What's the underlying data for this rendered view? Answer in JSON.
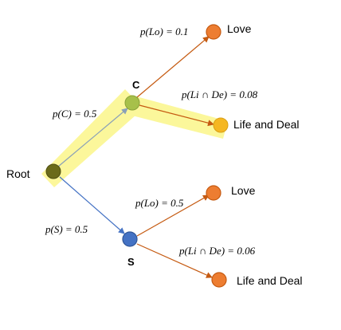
{
  "nodes": {
    "root": {
      "label": "Root",
      "color": "#6b6b1a"
    },
    "c": {
      "label": "C",
      "color": "#a7c04a"
    },
    "s": {
      "label": "S",
      "color": "#4472c4"
    },
    "c_love": {
      "label": "Love",
      "color": "#ed7d31"
    },
    "c_life": {
      "label": "Life and Deal",
      "color": "#f5b722"
    },
    "s_love": {
      "label": "Love",
      "color": "#ed7d31"
    },
    "s_life": {
      "label": "Life and Deal",
      "color": "#ed7d31"
    }
  },
  "edges": {
    "root_c": {
      "prob": "p(C) = 0.5"
    },
    "root_s": {
      "prob": "p(S) = 0.5"
    },
    "c_love": {
      "prob": "p(Lo) = 0.1"
    },
    "c_life": {
      "prob": "p(Li ∩ De) = 0.08"
    },
    "s_love": {
      "prob": "p(Lo) = 0.5"
    },
    "s_life": {
      "prob": "p(Li ∩ De) = 0.06"
    }
  },
  "colors": {
    "highlight": "#fbf68a",
    "edge_root_c": "#8aa0b8",
    "edge_root_s": "#4472c4",
    "edge_orange": "#c55a11"
  }
}
